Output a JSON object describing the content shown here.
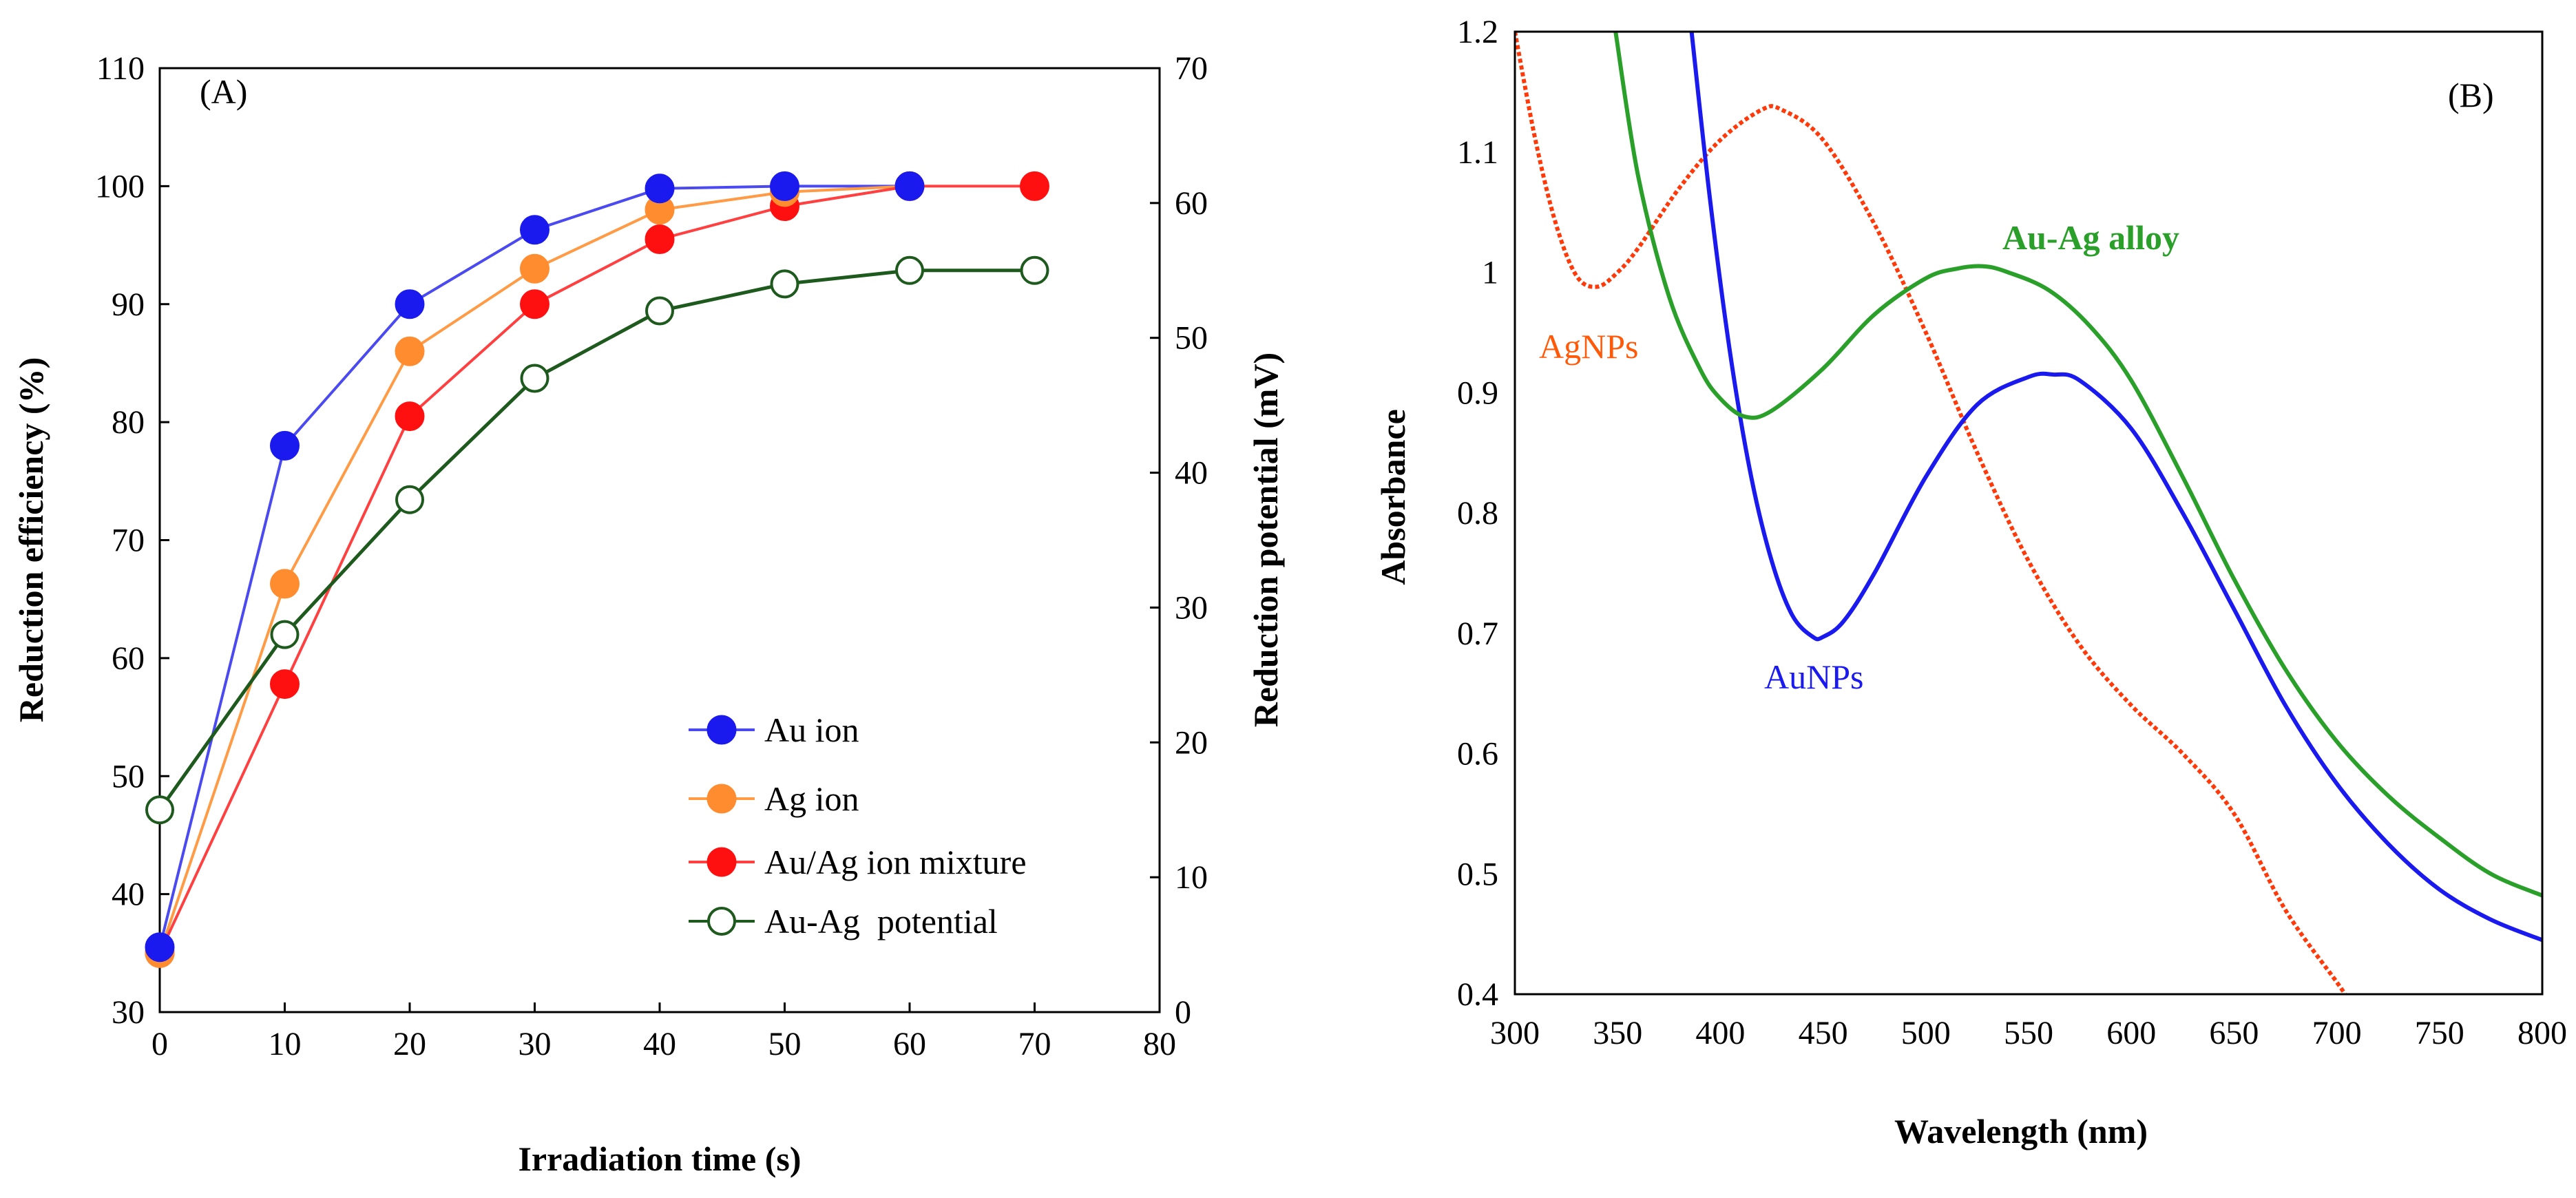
{
  "chart_data": [
    {
      "type": "line",
      "panel_label": "(A)",
      "xlabel": "Irradiation time (s)",
      "ylabel": "Reduction efficiency (%)",
      "y2label": "Reduction potential (mV)",
      "xlim": [
        0,
        80
      ],
      "ylim": [
        30,
        110
      ],
      "y2lim": [
        0,
        70
      ],
      "xticks": [
        "0",
        "10",
        "20",
        "30",
        "40",
        "50",
        "60",
        "70",
        "80"
      ],
      "yticks": [
        "30",
        "40",
        "50",
        "60",
        "70",
        "80",
        "90",
        "100",
        "110"
      ],
      "y2ticks": [
        "0",
        "10",
        "20",
        "30",
        "40",
        "50",
        "60",
        "70"
      ],
      "legend_position": "lower-right",
      "series": [
        {
          "name": "Au ion",
          "axis": "left",
          "color": "#1a1aee",
          "marker": "filled",
          "line": "#4a4af0",
          "x": [
            0,
            10,
            20,
            30,
            40,
            50,
            60
          ],
          "values": [
            35.5,
            78,
            90,
            96.3,
            99.8,
            100,
            100
          ]
        },
        {
          "name": "Ag ion",
          "axis": "left",
          "color": "#ff8c2e",
          "marker": "filled",
          "line": "#ff9a45",
          "x": [
            0,
            10,
            20,
            30,
            40,
            50,
            60
          ],
          "values": [
            35,
            66.3,
            86,
            93,
            98,
            99.5,
            100
          ]
        },
        {
          "name": "Au/Ag ion mixture",
          "axis": "left",
          "color": "#ff1010",
          "marker": "filled",
          "line": "#ff4040",
          "x": [
            0,
            10,
            20,
            30,
            40,
            50,
            60,
            70
          ],
          "values": [
            35,
            57.8,
            80.5,
            90,
            95.5,
            98.3,
            100,
            100
          ]
        },
        {
          "name": "Au-Ag  potential",
          "axis": "right",
          "color": "#1e5a1e",
          "marker": "open",
          "line": "#1e5a1e",
          "x": [
            0,
            10,
            20,
            30,
            40,
            50,
            60,
            70
          ],
          "values": [
            15,
            28,
            38,
            47,
            52,
            54,
            55,
            55
          ]
        }
      ]
    },
    {
      "type": "line",
      "panel_label": "(B)",
      "xlabel": "Wavelength (nm)",
      "ylabel": "Absorbance",
      "xlim": [
        300,
        800
      ],
      "ylim": [
        0.4,
        1.2
      ],
      "xticks": [
        "300",
        "350",
        "400",
        "450",
        "500",
        "550",
        "600",
        "650",
        "700",
        "750",
        "800"
      ],
      "yticks": [
        "0.4",
        "0.5",
        "0.6",
        "0.7",
        "0.8",
        "0.9",
        "1",
        "1.1",
        "1.2"
      ],
      "annotations": [
        {
          "text": "AgNPs",
          "color": "#ff5a0a",
          "series": "AgNPs"
        },
        {
          "text": "AuNPs",
          "color": "#1a1aee",
          "series": "AuNPs"
        },
        {
          "text": "Au-Ag alloy",
          "color": "#2aa02a",
          "series": "Au-Ag alloy",
          "bold": true
        }
      ],
      "series": [
        {
          "name": "AgNPs",
          "color": "#ff3a0a",
          "dash": true,
          "x": [
            300,
            310,
            320,
            330,
            340,
            350,
            360,
            380,
            400,
            420,
            430,
            450,
            475,
            500,
            525,
            550,
            575,
            600,
            625,
            650,
            675,
            700,
            704
          ],
          "values": [
            1.2,
            1.11,
            1.04,
            0.997,
            0.988,
            1.0,
            1.02,
            1.07,
            1.11,
            1.135,
            1.135,
            1.11,
            1.04,
            0.95,
            0.85,
            0.76,
            0.69,
            0.64,
            0.6,
            0.55,
            0.47,
            0.41,
            0.4
          ]
        },
        {
          "name": "AuNPs",
          "color": "#1a1aee",
          "dash": false,
          "x": [
            386,
            395,
            405,
            415,
            425,
            435,
            445,
            450,
            460,
            475,
            500,
            525,
            550,
            562,
            575,
            600,
            625,
            650,
            675,
            700,
            725,
            750,
            775,
            800
          ],
          "values": [
            1.2,
            1.06,
            0.93,
            0.83,
            0.76,
            0.715,
            0.697,
            0.697,
            0.71,
            0.75,
            0.83,
            0.89,
            0.913,
            0.915,
            0.91,
            0.87,
            0.8,
            0.72,
            0.64,
            0.575,
            0.525,
            0.487,
            0.462,
            0.445
          ]
        },
        {
          "name": "Au-Ag alloy",
          "color": "#2aa02a",
          "dash": false,
          "x": [
            349,
            360,
            375,
            390,
            400,
            412,
            425,
            450,
            475,
            500,
            515,
            528,
            540,
            560,
            580,
            600,
            625,
            650,
            675,
            700,
            725,
            750,
            775,
            800
          ],
          "values": [
            1.2,
            1.08,
            0.98,
            0.92,
            0.895,
            0.88,
            0.885,
            0.92,
            0.965,
            0.995,
            1.003,
            1.005,
            1.0,
            0.985,
            0.955,
            0.91,
            0.83,
            0.745,
            0.67,
            0.61,
            0.565,
            0.53,
            0.5,
            0.482
          ]
        }
      ]
    }
  ]
}
